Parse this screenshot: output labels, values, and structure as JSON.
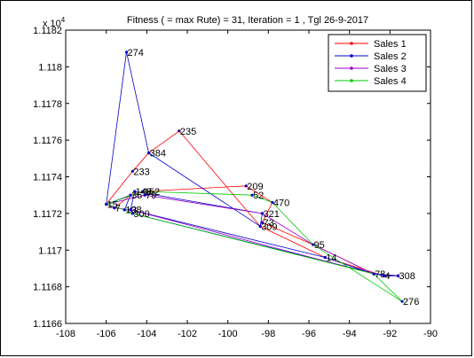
{
  "chart_data": {
    "type": "line",
    "title": "Fitness ( = max Rute) = 31, Iteration = 1 , Tgl 26-9-2017",
    "xlabel": "",
    "ylabel": "",
    "xlim": [
      -108,
      -90
    ],
    "ylim": [
      1.1166,
      1.1182
    ],
    "y_multiplier_label": "x 10",
    "y_multiplier_exp": "4",
    "x_ticks": [
      -108,
      -106,
      -104,
      -102,
      -100,
      -98,
      -96,
      -94,
      -92,
      -90
    ],
    "x_tick_labels": [
      "-108",
      "-106",
      "-104",
      "-102",
      "-100",
      "-98",
      "-96",
      "-94",
      "-92",
      "-90"
    ],
    "y_ticks": [
      1.1166,
      1.1168,
      1.117,
      1.1172,
      1.1174,
      1.1176,
      1.1178,
      1.118,
      1.1182
    ],
    "y_tick_labels": [
      "1.1166",
      "1.1168",
      "1.117",
      "1.1172",
      "1.1174",
      "1.1176",
      "1.1178",
      "1.118",
      "1.1182"
    ],
    "grid": false,
    "legend_position": "top-right",
    "nodes": [
      {
        "label": "274",
        "x": -105.0,
        "y": 1.11808
      },
      {
        "label": "235",
        "x": -102.4,
        "y": 1.11765
      },
      {
        "label": "384",
        "x": -103.9,
        "y": 1.11753
      },
      {
        "label": "233",
        "x": -104.7,
        "y": 1.11743
      },
      {
        "label": "209",
        "x": -99.1,
        "y": 1.11735
      },
      {
        "label": "52",
        "x": -98.8,
        "y": 1.1173
      },
      {
        "label": "470",
        "x": -97.8,
        "y": 1.11726
      },
      {
        "label": "321",
        "x": -98.3,
        "y": 1.1172
      },
      {
        "label": "73",
        "x": -98.3,
        "y": 1.11715
      },
      {
        "label": "309",
        "x": -98.4,
        "y": 1.11713
      },
      {
        "label": "95",
        "x": -95.8,
        "y": 1.11703
      },
      {
        "label": "14",
        "x": -95.2,
        "y": 1.11696
      },
      {
        "label": "78",
        "x": -92.8,
        "y": 1.11687
      },
      {
        "label": "4",
        "x": -92.3,
        "y": 1.11686
      },
      {
        "label": "308",
        "x": -91.6,
        "y": 1.11686
      },
      {
        "label": "276",
        "x": -91.4,
        "y": 1.11672
      },
      {
        "label": "152",
        "x": -104.2,
        "y": 1.11732
      },
      {
        "label": "148",
        "x": -104.6,
        "y": 1.11732
      },
      {
        "label": "36",
        "x": -104.8,
        "y": 1.1173
      },
      {
        "label": "79",
        "x": -104.1,
        "y": 1.1173
      },
      {
        "label": "15",
        "x": -106.0,
        "y": 1.11725
      },
      {
        "label": "7",
        "x": -105.6,
        "y": 1.11723
      },
      {
        "label": "108",
        "x": -105.1,
        "y": 1.11722
      },
      {
        "label": "3",
        "x": -104.8,
        "y": 1.11722
      },
      {
        "label": "300",
        "x": -104.7,
        "y": 1.1172
      }
    ],
    "series": [
      {
        "name": "Sales  1",
        "color": "#ff0000",
        "x": [
          -106.0,
          -104.7,
          -103.9,
          -102.4,
          -98.4,
          -95.2,
          -92.3,
          -91.6,
          -92.8,
          -95.8,
          -98.3,
          -97.8,
          -99.1,
          -104.2,
          -104.8,
          -105.6,
          -106.0
        ],
        "y": [
          1.11725,
          1.11743,
          1.11753,
          1.11765,
          1.11713,
          1.11696,
          1.11686,
          1.11686,
          1.11687,
          1.11703,
          1.11715,
          1.11726,
          1.11735,
          1.11732,
          1.1173,
          1.11723,
          1.11725
        ]
      },
      {
        "name": "Sales  2",
        "color": "#0000cc",
        "x": [
          -106.0,
          -105.0,
          -103.9,
          -98.4,
          -98.3,
          -104.6,
          -104.8,
          -95.2,
          -92.8,
          -91.6,
          -92.3,
          -104.7,
          -105.1,
          -104.8,
          -106.0
        ],
        "y": [
          1.11725,
          1.11808,
          1.11753,
          1.11713,
          1.1172,
          1.11732,
          1.11722,
          1.11696,
          1.11687,
          1.11686,
          1.11686,
          1.1172,
          1.11722,
          1.1173,
          1.11725
        ]
      },
      {
        "name": "Sales  3",
        "color": "#9900cc",
        "x": [
          -106.0,
          -104.1,
          -98.3,
          -95.8,
          -92.8,
          -104.8,
          -105.6,
          -106.0
        ],
        "y": [
          1.11725,
          1.1173,
          1.1172,
          1.11703,
          1.11687,
          1.11722,
          1.11723,
          1.11725
        ]
      },
      {
        "name": "Sales  4",
        "color": "#00cc00",
        "x": [
          -106.0,
          -104.2,
          -98.8,
          -97.8,
          -95.8,
          -91.4,
          -92.8,
          -104.7,
          -105.1,
          -106.0
        ],
        "y": [
          1.11725,
          1.11732,
          1.1173,
          1.11726,
          1.11703,
          1.11672,
          1.11687,
          1.1172,
          1.11722,
          1.11725
        ]
      }
    ]
  }
}
